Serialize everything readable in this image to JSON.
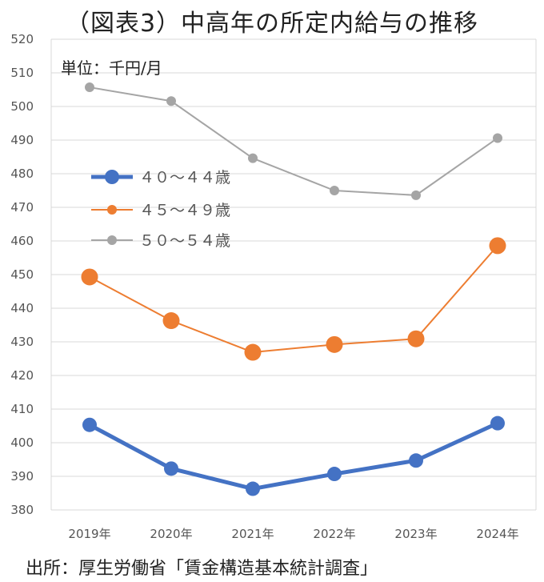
{
  "title": "（図表3）中高年の所定内給与の推移",
  "source": "出所：厚生労働省「賃金構造基本統計調査」",
  "chart_data": {
    "type": "line",
    "unit_label": "単位：千円/月",
    "categories": [
      "2019年",
      "2020年",
      "2021年",
      "2022年",
      "2023年",
      "2024年"
    ],
    "ylim": [
      380,
      520
    ],
    "yticks": [
      380,
      390,
      400,
      410,
      420,
      430,
      440,
      450,
      460,
      470,
      480,
      490,
      500,
      510,
      520
    ],
    "grid": true,
    "legend_position": "inside-left",
    "series": [
      {
        "name": "４０～４４歳",
        "color": "#4472C4",
        "values": [
          405.3,
          392.3,
          386.3,
          390.7,
          394.7,
          405.8
        ]
      },
      {
        "name": "４５～４９歳",
        "color": "#ED7D31",
        "values": [
          449.3,
          436.3,
          426.9,
          429.2,
          430.9,
          458.6
        ]
      },
      {
        "name": "５０～５４歳",
        "color": "#A5A5A5",
        "values": [
          505.7,
          501.6,
          484.6,
          475.0,
          473.6,
          490.6
        ]
      }
    ]
  }
}
